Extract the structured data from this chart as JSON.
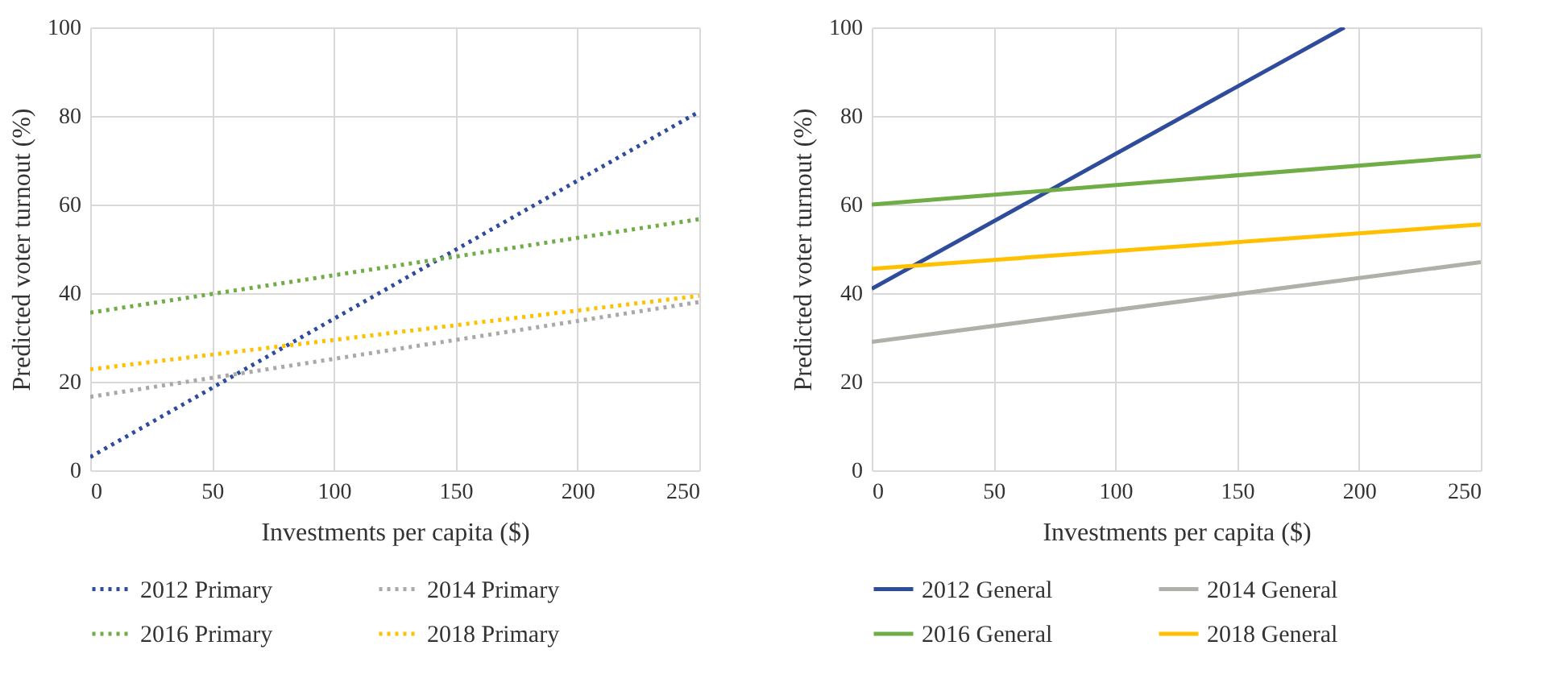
{
  "chart_data": [
    {
      "type": "line",
      "xlabel": "Investments per capita ($)",
      "ylabel": "Predicted voter turnout (%)",
      "xlim": [
        0,
        250
      ],
      "ylim": [
        0,
        100
      ],
      "xticks": [
        0,
        50,
        100,
        150,
        200,
        250
      ],
      "yticks": [
        0,
        20,
        40,
        60,
        80,
        100
      ],
      "grid": true,
      "legend": "bottom",
      "line_style": "dotted",
      "series": [
        {
          "name": "2012 Primary",
          "color": "#2f4b9c",
          "x": [
            0,
            250
          ],
          "values": [
            3,
            81
          ]
        },
        {
          "name": "2014 Primary",
          "color": "#a9a9a9",
          "x": [
            0,
            250
          ],
          "values": [
            16.6,
            38
          ]
        },
        {
          "name": "2016 Primary",
          "color": "#70ad47",
          "x": [
            0,
            250
          ],
          "values": [
            35.6,
            56.7
          ]
        },
        {
          "name": "2018 Primary",
          "color": "#ffc000",
          "x": [
            0,
            250
          ],
          "values": [
            22.8,
            39.4
          ]
        }
      ]
    },
    {
      "type": "line",
      "xlabel": "Investments per capita ($)",
      "ylabel": "Predicted voter turnout (%)",
      "xlim": [
        0,
        250
      ],
      "ylim": [
        0,
        100
      ],
      "xticks": [
        0,
        50,
        100,
        150,
        200,
        250
      ],
      "yticks": [
        0,
        20,
        40,
        60,
        80,
        100
      ],
      "grid": true,
      "legend": "bottom",
      "line_style": "solid",
      "series": [
        {
          "name": "2012 General",
          "color": "#2f4b9c",
          "x": [
            0,
            194
          ],
          "values": [
            41,
            100
          ]
        },
        {
          "name": "2014 General",
          "color": "#b0b0a8",
          "x": [
            0,
            250
          ],
          "values": [
            29,
            47
          ]
        },
        {
          "name": "2016 General",
          "color": "#70ad47",
          "x": [
            0,
            250
          ],
          "values": [
            60,
            71
          ]
        },
        {
          "name": "2018 General",
          "color": "#ffc000",
          "x": [
            0,
            250
          ],
          "values": [
            45.5,
            55.5
          ]
        }
      ]
    }
  ]
}
